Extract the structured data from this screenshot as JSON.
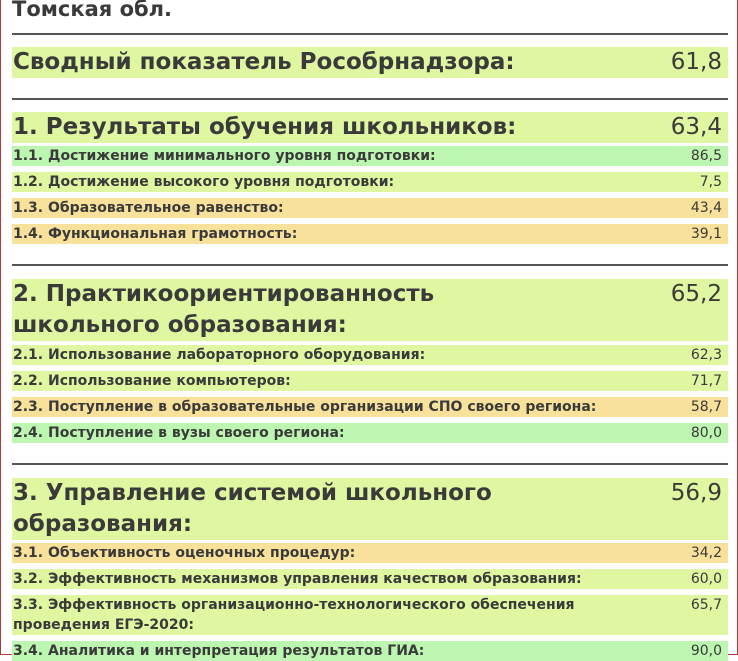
{
  "region": "Томская обл.",
  "summary": {
    "label": "Сводный показатель Рособрнадзора:",
    "value": "61,8",
    "color": "#e0f7a2"
  },
  "sections": [
    {
      "title": "1. Результаты обучения школьников:",
      "value": "63,4",
      "items": [
        {
          "label": "1.1. Достижение минимального уровня подготовки:",
          "value": "86,5",
          "color": "#bdf6b0"
        },
        {
          "label": "1.2. Достижение высокого уровня подготовки:",
          "value": "7,5",
          "color": "#e0f7a2"
        },
        {
          "label": "1.3. Образовательное равенство:",
          "value": "43,4",
          "color": "#f8e19a"
        },
        {
          "label": "1.4. Функциональная грамотность:",
          "value": "39,1",
          "color": "#f8e19a"
        }
      ]
    },
    {
      "title": "2. Практикоориентированность школьного образования:",
      "value": "65,2",
      "items": [
        {
          "label": "2.1. Использование лабораторного оборудования:",
          "value": "62,3",
          "color": "#e0f7a2"
        },
        {
          "label": "2.2. Использование компьютеров:",
          "value": "71,7",
          "color": "#e0f7a2"
        },
        {
          "label": "2.3. Поступление в образовательные организации СПО своего региона:",
          "value": "58,7",
          "color": "#f8e19a"
        },
        {
          "label": "2.4. Поступление в вузы своего региона:",
          "value": "80,0",
          "color": "#bdf6b0"
        }
      ]
    },
    {
      "title": "3. Управление системой школьного образования:",
      "value": "56,9",
      "items": [
        {
          "label": "3.1. Объективность оценочных процедур:",
          "value": "34,2",
          "color": "#f8e19a"
        },
        {
          "label": "3.2. Эффективность механизмов управления качеством образования:",
          "value": "60,0",
          "color": "#e0f7a2"
        },
        {
          "label": "3.3. Эффективность организационно-технологического обеспечения проведения ЕГЭ-2020:",
          "value": "65,7",
          "color": "#e0f7a2"
        },
        {
          "label": "3.4. Аналитика и интерпретация результатов ГИА:",
          "value": "90,0",
          "color": "#bdf6b0"
        }
      ]
    }
  ]
}
